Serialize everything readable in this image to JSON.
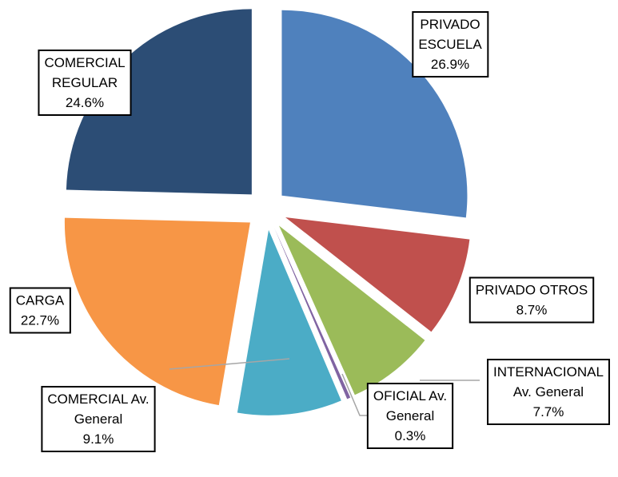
{
  "chart_data": {
    "type": "pie",
    "categories": [
      "PRIVADO\nESCUELA",
      "PRIVADO OTROS",
      "INTERNACIONAL\nAv. General",
      "OFICIAL Av.\nGeneral",
      "COMERCIAL Av.\nGeneral",
      "CARGA",
      "COMERCIAL\nREGULAR"
    ],
    "values": [
      26.9,
      8.7,
      7.7,
      0.3,
      9.1,
      22.7,
      24.6
    ],
    "value_labels": [
      "26.9%",
      "8.7%",
      "7.7%",
      "0.3%",
      "9.1%",
      "22.7%",
      "24.6%"
    ],
    "colors": [
      "#4f81bd",
      "#c0504d",
      "#9bbb59",
      "#8064a2",
      "#4bacc6",
      "#f79646",
      "#2c4d75"
    ]
  }
}
